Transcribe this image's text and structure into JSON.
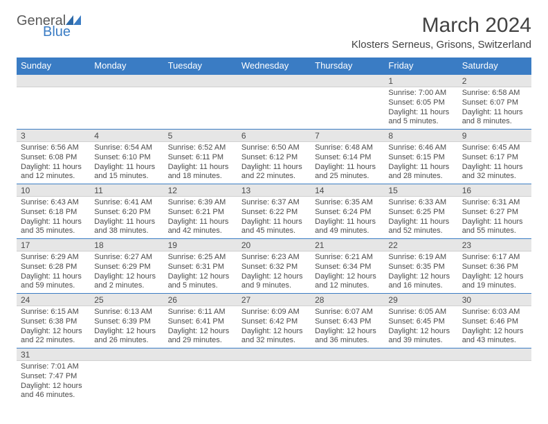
{
  "branding": {
    "text1": "General",
    "text2": "Blue",
    "color1": "#5a5a5a",
    "color2": "#3a7cc4"
  },
  "header": {
    "month_title": "March 2024",
    "location": "Klosters Serneus, Grisons, Switzerland"
  },
  "styling": {
    "header_bg": "#3a7cc4",
    "header_text": "#ffffff",
    "daynum_bg": "#e6e6e6",
    "text_color": "#4a4a4a",
    "row_border": "#3a7cc4",
    "fontsize_title": 30,
    "fontsize_location": 15,
    "fontsize_dayhead": 13,
    "fontsize_daynum": 12,
    "fontsize_info": 11
  },
  "day_names": [
    "Sunday",
    "Monday",
    "Tuesday",
    "Wednesday",
    "Thursday",
    "Friday",
    "Saturday"
  ],
  "weeks": [
    {
      "nums": [
        "",
        "",
        "",
        "",
        "",
        "1",
        "2"
      ],
      "info": [
        "",
        "",
        "",
        "",
        "",
        "Sunrise: 7:00 AM\nSunset: 6:05 PM\nDaylight: 11 hours and 5 minutes.",
        "Sunrise: 6:58 AM\nSunset: 6:07 PM\nDaylight: 11 hours and 8 minutes."
      ]
    },
    {
      "nums": [
        "3",
        "4",
        "5",
        "6",
        "7",
        "8",
        "9"
      ],
      "info": [
        "Sunrise: 6:56 AM\nSunset: 6:08 PM\nDaylight: 11 hours and 12 minutes.",
        "Sunrise: 6:54 AM\nSunset: 6:10 PM\nDaylight: 11 hours and 15 minutes.",
        "Sunrise: 6:52 AM\nSunset: 6:11 PM\nDaylight: 11 hours and 18 minutes.",
        "Sunrise: 6:50 AM\nSunset: 6:12 PM\nDaylight: 11 hours and 22 minutes.",
        "Sunrise: 6:48 AM\nSunset: 6:14 PM\nDaylight: 11 hours and 25 minutes.",
        "Sunrise: 6:46 AM\nSunset: 6:15 PM\nDaylight: 11 hours and 28 minutes.",
        "Sunrise: 6:45 AM\nSunset: 6:17 PM\nDaylight: 11 hours and 32 minutes."
      ]
    },
    {
      "nums": [
        "10",
        "11",
        "12",
        "13",
        "14",
        "15",
        "16"
      ],
      "info": [
        "Sunrise: 6:43 AM\nSunset: 6:18 PM\nDaylight: 11 hours and 35 minutes.",
        "Sunrise: 6:41 AM\nSunset: 6:20 PM\nDaylight: 11 hours and 38 minutes.",
        "Sunrise: 6:39 AM\nSunset: 6:21 PM\nDaylight: 11 hours and 42 minutes.",
        "Sunrise: 6:37 AM\nSunset: 6:22 PM\nDaylight: 11 hours and 45 minutes.",
        "Sunrise: 6:35 AM\nSunset: 6:24 PM\nDaylight: 11 hours and 49 minutes.",
        "Sunrise: 6:33 AM\nSunset: 6:25 PM\nDaylight: 11 hours and 52 minutes.",
        "Sunrise: 6:31 AM\nSunset: 6:27 PM\nDaylight: 11 hours and 55 minutes."
      ]
    },
    {
      "nums": [
        "17",
        "18",
        "19",
        "20",
        "21",
        "22",
        "23"
      ],
      "info": [
        "Sunrise: 6:29 AM\nSunset: 6:28 PM\nDaylight: 11 hours and 59 minutes.",
        "Sunrise: 6:27 AM\nSunset: 6:29 PM\nDaylight: 12 hours and 2 minutes.",
        "Sunrise: 6:25 AM\nSunset: 6:31 PM\nDaylight: 12 hours and 5 minutes.",
        "Sunrise: 6:23 AM\nSunset: 6:32 PM\nDaylight: 12 hours and 9 minutes.",
        "Sunrise: 6:21 AM\nSunset: 6:34 PM\nDaylight: 12 hours and 12 minutes.",
        "Sunrise: 6:19 AM\nSunset: 6:35 PM\nDaylight: 12 hours and 16 minutes.",
        "Sunrise: 6:17 AM\nSunset: 6:36 PM\nDaylight: 12 hours and 19 minutes."
      ]
    },
    {
      "nums": [
        "24",
        "25",
        "26",
        "27",
        "28",
        "29",
        "30"
      ],
      "info": [
        "Sunrise: 6:15 AM\nSunset: 6:38 PM\nDaylight: 12 hours and 22 minutes.",
        "Sunrise: 6:13 AM\nSunset: 6:39 PM\nDaylight: 12 hours and 26 minutes.",
        "Sunrise: 6:11 AM\nSunset: 6:41 PM\nDaylight: 12 hours and 29 minutes.",
        "Sunrise: 6:09 AM\nSunset: 6:42 PM\nDaylight: 12 hours and 32 minutes.",
        "Sunrise: 6:07 AM\nSunset: 6:43 PM\nDaylight: 12 hours and 36 minutes.",
        "Sunrise: 6:05 AM\nSunset: 6:45 PM\nDaylight: 12 hours and 39 minutes.",
        "Sunrise: 6:03 AM\nSunset: 6:46 PM\nDaylight: 12 hours and 43 minutes."
      ]
    },
    {
      "nums": [
        "31",
        "",
        "",
        "",
        "",
        "",
        ""
      ],
      "info": [
        "Sunrise: 7:01 AM\nSunset: 7:47 PM\nDaylight: 12 hours and 46 minutes.",
        "",
        "",
        "",
        "",
        "",
        ""
      ]
    }
  ]
}
